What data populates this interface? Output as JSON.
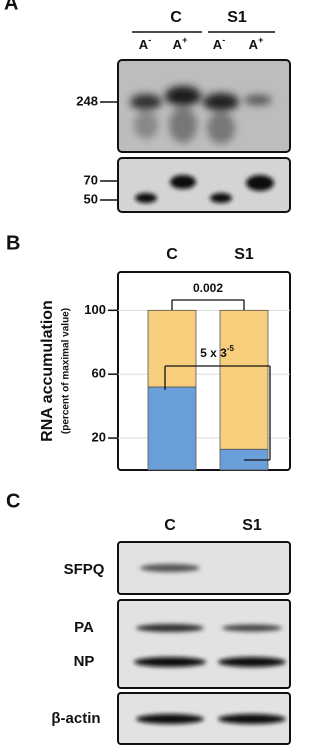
{
  "panel_a": {
    "label": "A",
    "groups": [
      "C",
      "S1"
    ],
    "lanes": [
      {
        "text": "A",
        "sup": "-"
      },
      {
        "text": "A",
        "sup": "+"
      },
      {
        "text": "A",
        "sup": "-"
      },
      {
        "text": "A",
        "sup": "+"
      }
    ],
    "markers_top": [
      "248"
    ],
    "markers_bottom": [
      "70",
      "50"
    ]
  },
  "chart_data": {
    "type": "stacked-bar",
    "panel_label": "B",
    "y_label": "RNA accumulation",
    "y_sublabel": "(percent of maximal value)",
    "categories": [
      "C",
      "S1"
    ],
    "series": [
      {
        "color": "#6b9fd9",
        "values": [
          52,
          13
        ]
      },
      {
        "color": "#f7cf7c",
        "values": [
          48,
          87
        ]
      }
    ],
    "ylim": [
      0,
      124
    ],
    "yticks": [
      20,
      60,
      100
    ],
    "grid": true,
    "annotations": [
      {
        "text": "0.002"
      },
      {
        "text": "5 x 3",
        "sup": "-5"
      }
    ]
  },
  "panel_c": {
    "label": "C",
    "groups": [
      "C",
      "S1"
    ],
    "rows": [
      "SFPQ",
      "PA",
      "NP",
      "β-actin"
    ]
  }
}
